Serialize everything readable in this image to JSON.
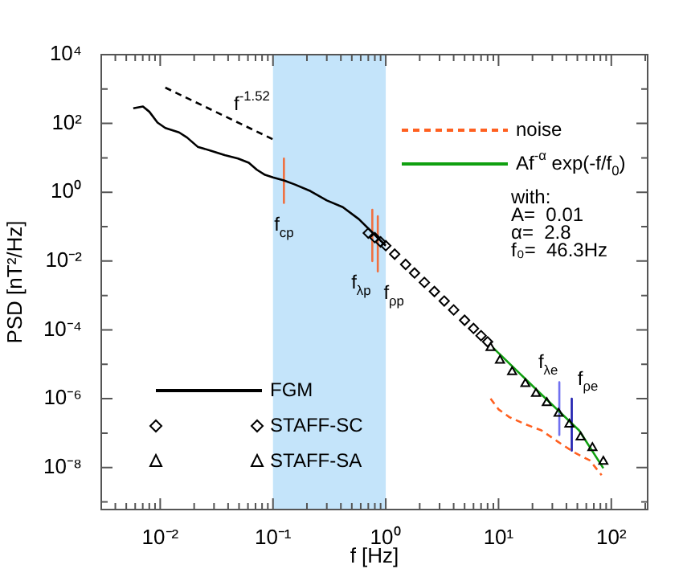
{
  "chart_data": {
    "type": "line",
    "xlabel": "f [Hz]",
    "ylabel": "PSD [nT²/Hz]",
    "log": "xy",
    "legend": "bottom left",
    "xlim": [
      0.003,
      210
    ],
    "ylim": [
      6e-10,
      10000
    ],
    "xticks": [
      {
        "value": 0.003,
        "label": null
      },
      {
        "value": 0.004,
        "label": null
      },
      {
        "value": 0.005,
        "label": null
      },
      {
        "value": 0.006,
        "label": null
      },
      {
        "value": 0.007,
        "label": null
      },
      {
        "value": 0.008,
        "label": null
      },
      {
        "value": 0.009,
        "label": null
      },
      {
        "value": 0.01,
        "label": "10⁻²"
      },
      {
        "value": 0.02,
        "label": null
      },
      {
        "value": 0.03,
        "label": null
      },
      {
        "value": 0.04,
        "label": null
      },
      {
        "value": 0.05,
        "label": null
      },
      {
        "value": 0.06,
        "label": null
      },
      {
        "value": 0.07,
        "label": null
      },
      {
        "value": 0.08,
        "label": null
      },
      {
        "value": 0.09,
        "label": null
      },
      {
        "value": 0.1,
        "label": "10⁻¹"
      },
      {
        "value": 0.2,
        "label": null
      },
      {
        "value": 0.3,
        "label": null
      },
      {
        "value": 0.4,
        "label": null
      },
      {
        "value": 0.5,
        "label": null
      },
      {
        "value": 0.6,
        "label": null
      },
      {
        "value": 0.7,
        "label": null
      },
      {
        "value": 0.8,
        "label": null
      },
      {
        "value": 0.9,
        "label": null
      },
      {
        "value": 1,
        "label": "10⁰"
      },
      {
        "value": 2,
        "label": null
      },
      {
        "value": 3,
        "label": null
      },
      {
        "value": 4,
        "label": null
      },
      {
        "value": 5,
        "label": null
      },
      {
        "value": 6,
        "label": null
      },
      {
        "value": 7,
        "label": null
      },
      {
        "value": 8,
        "label": null
      },
      {
        "value": 9,
        "label": null
      },
      {
        "value": 10,
        "label": "10¹"
      },
      {
        "value": 20,
        "label": null
      },
      {
        "value": 30,
        "label": null
      },
      {
        "value": 40,
        "label": null
      },
      {
        "value": 50,
        "label": null
      },
      {
        "value": 60,
        "label": null
      },
      {
        "value": 70,
        "label": null
      },
      {
        "value": 80,
        "label": null
      },
      {
        "value": 90,
        "label": null
      },
      {
        "value": 100,
        "label": "10²"
      },
      {
        "value": 200,
        "label": null
      }
    ],
    "yticks": [
      {
        "value": 1e-09,
        "label": null
      },
      {
        "value": 1e-08,
        "label": "10⁻⁸"
      },
      {
        "value": 1e-07,
        "label": null
      },
      {
        "value": 1e-06,
        "label": "10⁻⁶"
      },
      {
        "value": 1e-05,
        "label": null
      },
      {
        "value": 0.0001,
        "label": "10⁻⁴"
      },
      {
        "value": 0.001,
        "label": null
      },
      {
        "value": 0.01,
        "label": "10⁻²"
      },
      {
        "value": 0.1,
        "label": null
      },
      {
        "value": 1,
        "label": "10⁰"
      },
      {
        "value": 10,
        "label": null
      },
      {
        "value": 100,
        "label": "10²"
      },
      {
        "value": 1000,
        "label": null
      },
      {
        "value": 10000,
        "label": "10⁴"
      }
    ],
    "bands": [
      {
        "axis": "x",
        "from": 0.1,
        "to": 1,
        "color": "#c4e4fa"
      }
    ],
    "series": [
      {
        "name": "FGM",
        "color": "#000000",
        "marker": "none",
        "x": [
          0.00577,
          0.00703,
          0.00802,
          0.00946,
          0.0111,
          0.0147,
          0.0173,
          0.0215,
          0.0284,
          0.0373,
          0.049,
          0.061,
          0.072,
          0.085,
          0.1,
          0.125,
          0.155,
          0.215,
          0.3,
          0.416,
          0.577,
          0.76,
          1
        ],
        "values": [
          277,
          310,
          218,
          106,
          74,
          55,
          39,
          21,
          16,
          12,
          9.6,
          7.2,
          4.5,
          3.2,
          2.7,
          2.2,
          1.7,
          1.08,
          0.58,
          0.37,
          0.166,
          0.068,
          0.028
        ]
      },
      {
        "name": "STAFF-SC",
        "type": "scatter",
        "color": "#000000",
        "marker": "diamond",
        "x": [
          0.7,
          0.8,
          0.9,
          1,
          1.2,
          1.5,
          1.8,
          2.2,
          2.7,
          3.3,
          4,
          5,
          6,
          7,
          8
        ],
        "values": [
          0.065,
          0.048,
          0.036,
          0.028,
          0.0159,
          0.008,
          0.0045,
          0.0024,
          0.0013,
          0.00069,
          0.00038,
          0.00019,
          0.00011,
          6.8e-05,
          4.5e-05
        ]
      },
      {
        "name": "STAFF-SA",
        "type": "scatter",
        "color": "#000000",
        "marker": "triangle",
        "x": [
          8.5,
          10.3,
          13.2,
          17.3,
          21.5,
          26.8,
          34.1,
          42.5,
          53.5,
          68,
          85
        ],
        "values": [
          3e-05,
          1.3e-05,
          6e-06,
          2.7e-06,
          1.4e-06,
          7.6e-07,
          3.7e-07,
          1.8e-07,
          7.6e-08,
          3.7e-08,
          1.5e-08
        ]
      },
      {
        "name": "noise",
        "color": "#ff6020",
        "line_style": "dashed",
        "marker": "none",
        "x": [
          8.5,
          10,
          12.5,
          17.3,
          24,
          33.4,
          46.4,
          64.6,
          82
        ],
        "values": [
          1e-06,
          4.9e-07,
          2.9e-07,
          1.8e-07,
          1.2e-07,
          5.7e-08,
          2.8e-08,
          1.6e-08,
          6e-09
        ]
      },
      {
        "name": "Af$^{-α}$ exp(-f/f$_{0}$)",
        "color": "#10a010",
        "marker": "none",
        "x": [
          8.97,
          26.8,
          51.8,
          85
        ],
        "values": [
          3e-05,
          9.4e-07,
          1.2e-07,
          9.5e-09
        ]
      },
      {
        "color": "#000000",
        "line_style": "dashed",
        "marker": "none",
        "x": [
          0.0111,
          0.105
        ],
        "values": [
          1100,
          32
        ]
      },
      {
        "color": "#f07040",
        "marker": "none",
        "x": [
          0.125,
          0.125
        ],
        "values": [
          9.6,
          0.49
        ]
      },
      {
        "color": "#f07040",
        "marker": "none",
        "x": [
          0.76,
          0.76
        ],
        "values": [
          0.31,
          0.01
        ]
      },
      {
        "color": "#f07040",
        "marker": "none",
        "x": [
          0.85,
          0.85
        ],
        "values": [
          0.2,
          0.005
        ]
      },
      {
        "color": "#7070f0",
        "marker": "none",
        "x": [
          34.6,
          34.6
        ],
        "values": [
          3e-06,
          8.8e-08
        ]
      },
      {
        "color": "#2020b0",
        "marker": "none",
        "x": [
          44.6,
          44.6
        ],
        "values": [
          1e-06,
          3.1e-08
        ]
      }
    ],
    "annotations": [
      {
        "text": "f$^{-1.52}$",
        "x": 0.065,
        "y": 70
      },
      {
        "text": "f$_{cp}$",
        "x": 0.125,
        "y": 0.49
      },
      {
        "text": "f$_{λp}$",
        "x": 0.76,
        "y": 0.01
      },
      {
        "text": "f$_{ρp}$",
        "x": 0.85,
        "y": 0.005
      },
      {
        "text": "f$_{λe}$",
        "x": 34.6,
        "y": 3e-06
      },
      {
        "text": "f$_{ρe}$",
        "x": 44.6,
        "y": 1e-06
      },
      "with:",
      "A=  0.01",
      "α=  2.8",
      "f₀=  46.3Hz"
    ]
  }
}
